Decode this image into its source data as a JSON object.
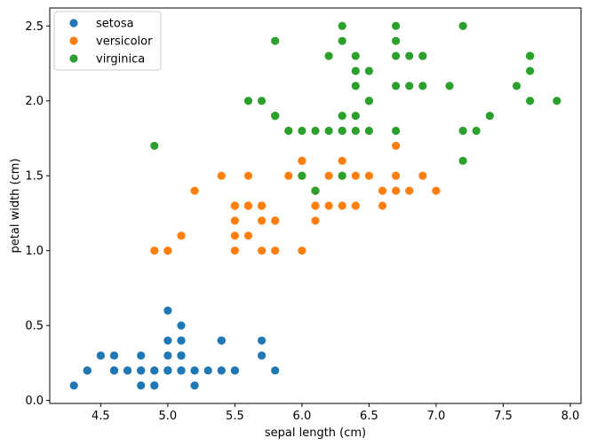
{
  "chart_data": {
    "type": "scatter",
    "xlabel": "sepal length (cm)",
    "ylabel": "petal width (cm)",
    "xlim": [
      4.12,
      8.08
    ],
    "ylim": [
      -0.02,
      2.62
    ],
    "xticks": [
      4.5,
      5.0,
      5.5,
      6.0,
      6.5,
      7.0,
      7.5,
      8.0
    ],
    "xtick_labels": [
      "4.5",
      "5.0",
      "5.5",
      "6.0",
      "6.5",
      "7.0",
      "7.5",
      "8.0"
    ],
    "yticks": [
      0.0,
      0.5,
      1.0,
      1.5,
      2.0,
      2.5
    ],
    "ytick_labels": [
      "0.0",
      "0.5",
      "1.0",
      "1.5",
      "2.0",
      "2.5"
    ],
    "grid": false,
    "legend_position": "upper-left",
    "series": [
      {
        "name": "setosa",
        "color": "#1f77b4",
        "x": [
          5.1,
          4.9,
          4.7,
          4.6,
          5.0,
          5.4,
          4.6,
          5.0,
          4.4,
          4.9,
          5.4,
          4.8,
          4.8,
          4.3,
          5.8,
          5.7,
          5.4,
          5.1,
          5.7,
          5.1,
          5.4,
          5.1,
          4.6,
          5.1,
          4.8,
          5.0,
          5.0,
          5.2,
          5.2,
          4.7,
          4.8,
          5.4,
          5.2,
          5.5,
          4.9,
          5.0,
          5.5,
          4.9,
          4.4,
          5.1,
          5.0,
          4.5,
          4.4,
          5.0,
          5.1,
          4.8,
          5.1,
          4.6,
          5.3,
          5.0
        ],
        "y": [
          0.2,
          0.2,
          0.2,
          0.2,
          0.2,
          0.4,
          0.3,
          0.2,
          0.2,
          0.1,
          0.2,
          0.2,
          0.1,
          0.1,
          0.2,
          0.4,
          0.4,
          0.3,
          0.3,
          0.3,
          0.2,
          0.4,
          0.2,
          0.5,
          0.2,
          0.2,
          0.4,
          0.2,
          0.2,
          0.2,
          0.2,
          0.4,
          0.1,
          0.2,
          0.2,
          0.2,
          0.2,
          0.1,
          0.2,
          0.2,
          0.3,
          0.3,
          0.2,
          0.6,
          0.4,
          0.3,
          0.2,
          0.2,
          0.2,
          0.2
        ]
      },
      {
        "name": "versicolor",
        "color": "#ff7f0e",
        "x": [
          7.0,
          6.4,
          6.9,
          5.5,
          6.5,
          5.7,
          6.3,
          4.9,
          6.6,
          5.2,
          5.0,
          5.9,
          6.0,
          6.1,
          5.6,
          6.7,
          5.6,
          5.8,
          6.2,
          5.6,
          5.9,
          6.1,
          6.3,
          6.1,
          6.4,
          6.6,
          6.8,
          6.7,
          6.0,
          5.7,
          5.5,
          5.5,
          5.8,
          6.0,
          5.4,
          6.0,
          6.7,
          6.3,
          5.6,
          5.5,
          5.5,
          6.1,
          5.8,
          5.0,
          5.6,
          5.7,
          5.7,
          6.2,
          5.1,
          5.7
        ],
        "y": [
          1.4,
          1.5,
          1.5,
          1.3,
          1.5,
          1.3,
          1.6,
          1.0,
          1.3,
          1.4,
          1.0,
          1.5,
          1.0,
          1.4,
          1.3,
          1.4,
          1.5,
          1.0,
          1.5,
          1.1,
          1.8,
          1.3,
          1.5,
          1.2,
          1.3,
          1.4,
          1.4,
          1.7,
          1.5,
          1.0,
          1.1,
          1.0,
          1.2,
          1.6,
          1.5,
          1.6,
          1.5,
          1.3,
          1.3,
          1.3,
          1.2,
          1.4,
          1.2,
          1.0,
          1.3,
          1.2,
          1.3,
          1.3,
          1.1,
          1.3
        ]
      },
      {
        "name": "virginica",
        "color": "#2ca02c",
        "x": [
          6.3,
          5.8,
          7.1,
          6.3,
          6.5,
          7.6,
          4.9,
          7.3,
          6.7,
          7.2,
          6.5,
          6.4,
          6.8,
          5.7,
          5.8,
          6.4,
          6.5,
          7.7,
          7.7,
          6.0,
          6.9,
          5.6,
          7.7,
          6.3,
          6.7,
          7.2,
          6.2,
          6.1,
          6.4,
          7.2,
          7.4,
          7.9,
          6.4,
          6.3,
          6.1,
          7.7,
          6.3,
          6.4,
          6.0,
          6.9,
          6.7,
          6.9,
          5.8,
          6.8,
          6.7,
          6.7,
          6.3,
          6.5,
          6.2,
          5.9
        ],
        "y": [
          2.5,
          1.9,
          2.1,
          1.8,
          2.2,
          2.1,
          1.7,
          1.8,
          1.8,
          2.5,
          2.0,
          1.9,
          2.1,
          2.0,
          2.4,
          2.3,
          1.8,
          2.2,
          2.3,
          1.5,
          2.3,
          2.0,
          2.0,
          1.8,
          2.1,
          1.8,
          1.8,
          1.8,
          2.1,
          1.6,
          1.9,
          2.0,
          2.2,
          1.5,
          1.4,
          2.3,
          2.4,
          1.8,
          1.8,
          2.1,
          2.4,
          2.3,
          1.9,
          2.3,
          2.5,
          2.3,
          1.9,
          2.0,
          2.3,
          1.8
        ]
      }
    ]
  }
}
